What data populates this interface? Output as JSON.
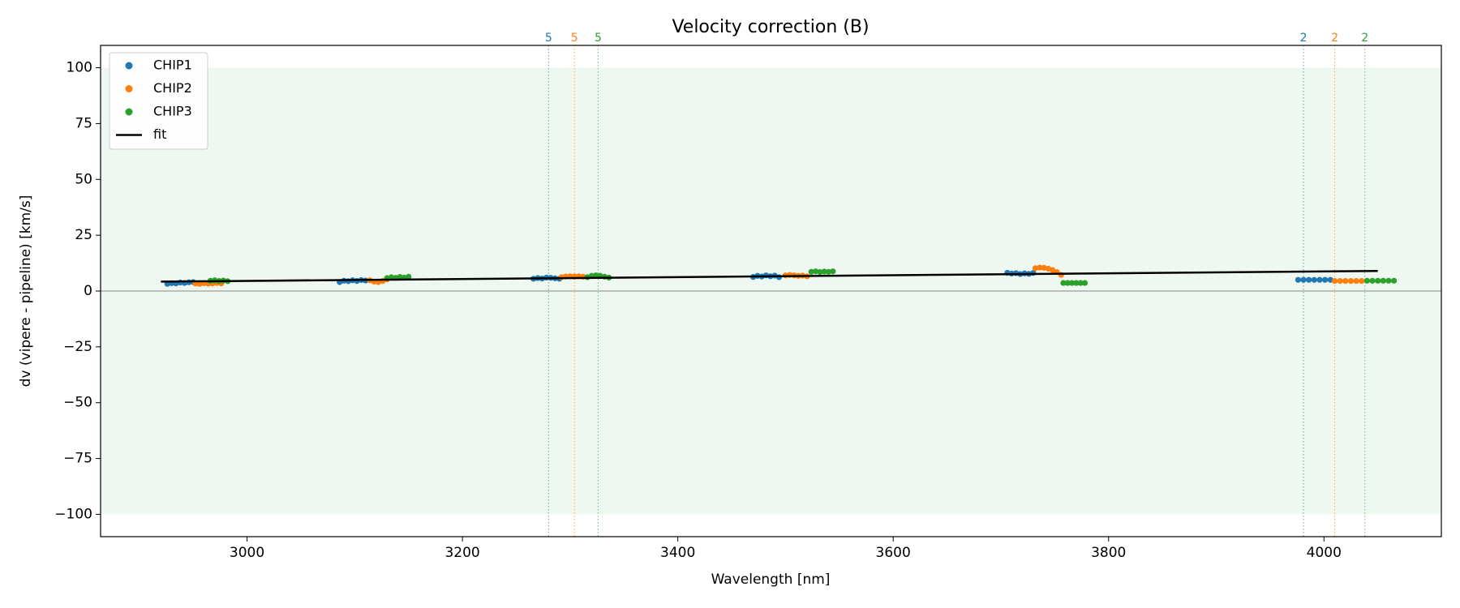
{
  "chart_data": {
    "type": "scatter",
    "title": "Velocity correction (B)",
    "x_label": "Wavelength [nm]",
    "y_label": "dv (vipere - pipeline) [km/s]",
    "xlim": [
      2864,
      4109
    ],
    "ylim": [
      -110,
      110
    ],
    "xticks": [
      3000,
      3200,
      3400,
      3600,
      3800,
      4000
    ],
    "yticks": [
      {
        "value": -100,
        "label": "−100"
      },
      {
        "value": -75,
        "label": "−75"
      },
      {
        "value": -50,
        "label": "−50"
      },
      {
        "value": -25,
        "label": "−25"
      },
      0,
      25,
      50,
      75,
      100
    ],
    "band": [
      -100,
      100
    ],
    "band_color": "#e8f5e9",
    "hline": 0,
    "legend": "upper left",
    "series": [
      {
        "name": "CHIP1",
        "color": "#1f77b4",
        "mode": "markers",
        "x": [
          2926,
          2930,
          2934,
          2938,
          2942,
          2946,
          2950,
          3086,
          3090,
          3094,
          3098,
          3102,
          3106,
          3110,
          3266,
          3270,
          3274,
          3278,
          3282,
          3286,
          3290,
          3470,
          3474,
          3478,
          3482,
          3486,
          3490,
          3494,
          3706,
          3710,
          3714,
          3718,
          3722,
          3726,
          3730,
          3976,
          3981,
          3986,
          3991,
          3996,
          4001,
          4006
        ],
        "values": [
          3.2,
          3.5,
          3.4,
          3.8,
          3.6,
          3.9,
          4.0,
          4.0,
          4.6,
          4.4,
          4.8,
          4.5,
          4.9,
          4.7,
          5.5,
          5.8,
          5.6,
          6.0,
          5.9,
          5.7,
          5.5,
          6.3,
          6.8,
          6.5,
          7.0,
          6.6,
          6.9,
          6.2,
          8.2,
          7.8,
          8.0,
          7.6,
          7.9,
          7.7,
          8.1,
          5,
          5,
          5,
          5,
          5,
          5,
          5
        ]
      },
      {
        "name": "CHIP2",
        "color": "#ff7f0e",
        "mode": "markers",
        "x": [
          2952,
          2956,
          2960,
          2964,
          2968,
          2972,
          2976,
          3114,
          3118,
          3122,
          3126,
          3130,
          3292,
          3296,
          3300,
          3304,
          3308,
          3312,
          3316,
          3500,
          3504,
          3508,
          3512,
          3516,
          3520,
          3732,
          3736,
          3740,
          3744,
          3748,
          3752,
          3756,
          4010,
          4015,
          4020,
          4025,
          4030,
          4035
        ],
        "values": [
          3.4,
          3.2,
          3.5,
          3.3,
          3.4,
          3.6,
          3.4,
          4.8,
          4.2,
          4.0,
          4.5,
          5.2,
          6.2,
          6.5,
          6.6,
          6.5,
          6.6,
          6.4,
          6.2,
          7.0,
          7.2,
          7.0,
          6.8,
          6.9,
          6.6,
          10.2,
          10.5,
          10.4,
          10.0,
          9.4,
          8.5,
          7.2,
          4.5,
          4.5,
          4.5,
          4.5,
          4.5,
          4.5
        ]
      },
      {
        "name": "CHIP3",
        "color": "#2ca02c",
        "mode": "markers",
        "x": [
          2966,
          2970,
          2974,
          2978,
          2982,
          3130,
          3134,
          3138,
          3142,
          3146,
          3150,
          3316,
          3320,
          3324,
          3328,
          3332,
          3336,
          3524,
          3528,
          3532,
          3536,
          3540,
          3544,
          3758,
          3762,
          3766,
          3770,
          3774,
          3778,
          4040,
          4045,
          4050,
          4055,
          4060,
          4065
        ],
        "values": [
          4.6,
          4.8,
          4.5,
          4.7,
          4.4,
          5.8,
          6.2,
          5.9,
          6.3,
          6.0,
          6.4,
          6.2,
          6.8,
          7.0,
          6.8,
          6.4,
          6.0,
          8.6,
          8.8,
          8.5,
          8.7,
          8.6,
          8.8,
          3.6,
          3.6,
          3.6,
          3.6,
          3.6,
          3.6,
          4.6,
          4.6,
          4.6,
          4.6,
          4.6,
          4.6
        ]
      },
      {
        "name": "fit",
        "color": "#000000",
        "mode": "line",
        "x": [
          2920,
          4050
        ],
        "values": [
          4.2,
          9.0
        ]
      }
    ],
    "vlines": [
      {
        "x": 3280,
        "label": "5",
        "color": "#1f77b4"
      },
      {
        "x": 3304,
        "label": "5",
        "color": "#ff7f0e"
      },
      {
        "x": 3326,
        "label": "5",
        "color": "#2ca02c"
      },
      {
        "x": 3981,
        "label": "2",
        "color": "#1f77b4"
      },
      {
        "x": 4010,
        "label": "2",
        "color": "#ff7f0e"
      },
      {
        "x": 4038,
        "label": "2",
        "color": "#2ca02c"
      }
    ]
  }
}
